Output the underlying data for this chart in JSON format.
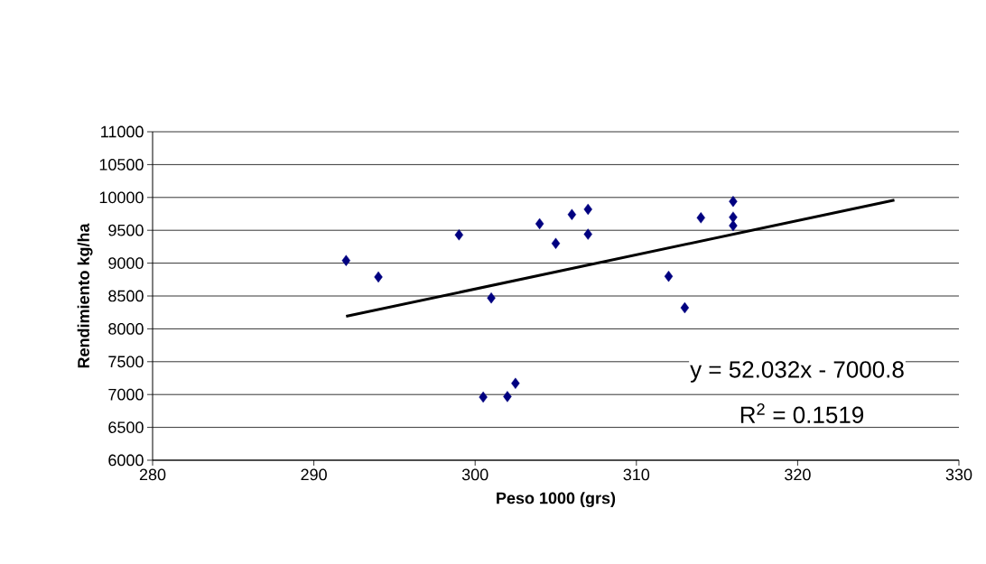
{
  "chart_data": {
    "type": "scatter",
    "xlabel": "Peso 1000 (grs)",
    "ylabel": "Rendimiento kg/ha",
    "xlim": [
      280,
      330
    ],
    "xticks": [
      280,
      290,
      300,
      310,
      320,
      330
    ],
    "ylim": [
      6000,
      11000
    ],
    "yticks": [
      6000,
      6500,
      7000,
      7500,
      8000,
      8500,
      9000,
      9500,
      10000,
      10500,
      11000
    ],
    "grid": "y",
    "marker": "diamond",
    "series": [
      {
        "type": "scatter",
        "color": "#000080",
        "x": [
          292,
          294,
          299,
          300.5,
          301,
          302,
          302.5,
          304,
          305,
          306,
          307,
          307,
          312,
          313,
          314,
          316,
          316,
          316
        ],
        "values": [
          9040,
          8790,
          9430,
          6960,
          8470,
          6970,
          7170,
          9600,
          9300,
          9740,
          9820,
          9440,
          8800,
          8320,
          9690,
          9940,
          9700,
          9570
        ]
      },
      {
        "type": "line",
        "color": "#000000",
        "line_style": "solid",
        "marker": "none",
        "x": [
          292,
          326
        ],
        "values": [
          8190,
          9960
        ]
      }
    ],
    "annotations": [
      "y = 52.032x - 7000.8",
      "R$^{2}$ = 0.1519"
    ]
  }
}
